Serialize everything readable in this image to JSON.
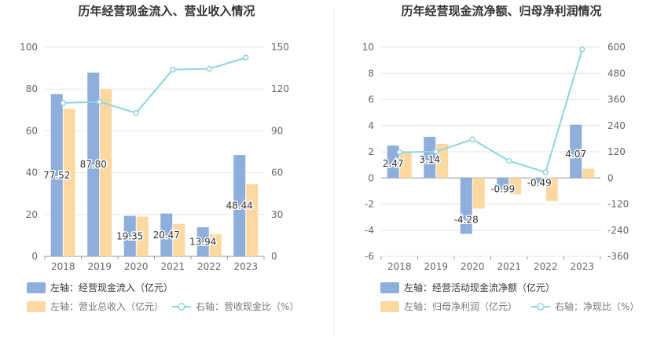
{
  "chart_data": [
    {
      "type": "bar",
      "title": "历年经营现金流入、营业收入情况",
      "categories": [
        "2018",
        "2019",
        "2020",
        "2021",
        "2022",
        "2023"
      ],
      "y_left": {
        "ticks": [
          "0",
          "20",
          "40",
          "60",
          "80",
          "100"
        ],
        "ylim": [
          0,
          100
        ]
      },
      "y_right": {
        "ticks": [
          "0",
          "30",
          "60",
          "90",
          "120",
          "150"
        ],
        "ylim": [
          0,
          150
        ]
      },
      "series": [
        {
          "name": "左轴：经营现金流入（亿元）",
          "kind": "bar",
          "axis": "left",
          "color": "#8eaedc",
          "values": [
            77.52,
            87.8,
            19.35,
            20.47,
            13.94,
            48.44
          ],
          "labels": [
            "77.52",
            "87.80",
            "19.35",
            "20.47",
            "13.94",
            "48.44"
          ]
        },
        {
          "name": "左轴：营业总收入（亿元）",
          "kind": "bar",
          "axis": "left",
          "color": "#fdd9a1",
          "values": [
            70.5,
            80.0,
            19.0,
            15.5,
            10.5,
            34.5
          ]
        },
        {
          "name": "右轴：营收现金比（%）",
          "kind": "line",
          "axis": "right",
          "color": "#8dd5de",
          "values": [
            110.0,
            110.8,
            102.8,
            133.9,
            134.5,
            142.5
          ]
        }
      ]
    },
    {
      "type": "bar",
      "title": "历年经营现金流净额、归母净利润情况",
      "categories": [
        "2018",
        "2019",
        "2020",
        "2021",
        "2022",
        "2023"
      ],
      "y_left": {
        "ticks": [
          "-6",
          "-4",
          "-2",
          "0",
          "2",
          "4",
          "6",
          "8",
          "10"
        ],
        "ylim": [
          -6,
          10
        ]
      },
      "y_right": {
        "ticks": [
          "-360",
          "-240",
          "-120",
          "0",
          "120",
          "240",
          "360",
          "480",
          "600"
        ],
        "ylim": [
          -360,
          600
        ]
      },
      "series": [
        {
          "name": "左轴：经营活动现金流净额（亿元）",
          "kind": "bar",
          "axis": "left",
          "color": "#8eaedc",
          "values": [
            2.47,
            3.14,
            -4.28,
            -0.99,
            -0.49,
            4.07
          ],
          "labels": [
            "2.47",
            "3.14",
            "-4.28",
            "-0.99",
            "-0.49",
            "4.07"
          ]
        },
        {
          "name": "左轴：归母净利润（亿元）",
          "kind": "bar",
          "axis": "left",
          "color": "#fdd9a1",
          "values": [
            2.0,
            2.6,
            -2.35,
            -1.25,
            -1.78,
            0.7
          ]
        },
        {
          "name": "右轴：净现比（%）",
          "kind": "line",
          "axis": "right",
          "color": "#8dd5de",
          "values": [
            118,
            120,
            177,
            78,
            26,
            590
          ]
        }
      ]
    }
  ]
}
